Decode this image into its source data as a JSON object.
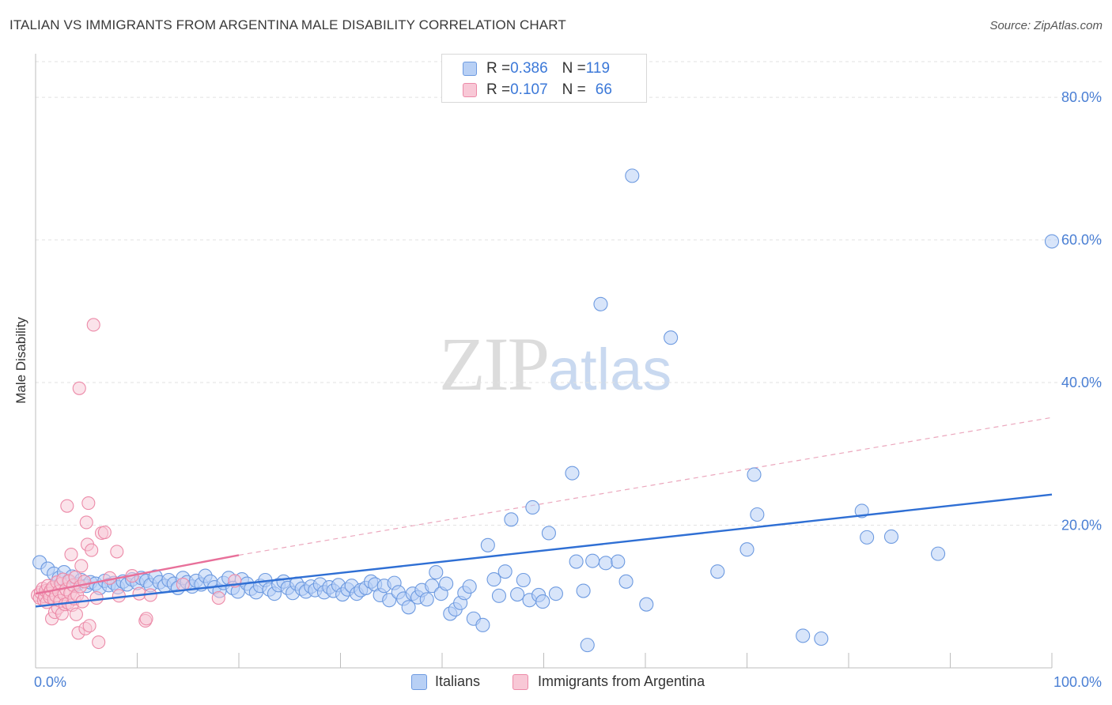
{
  "title": "ITALIAN VS IMMIGRANTS FROM ARGENTINA MALE DISABILITY CORRELATION CHART",
  "source": "Source: ZipAtlas.com",
  "watermark": {
    "zip": "ZIP",
    "atlas": "atlas"
  },
  "legend": {
    "rows": [
      {
        "r_label": "R = ",
        "r_value": "0.386",
        "n_label": "N = ",
        "n_value": "119"
      },
      {
        "r_label": "R = ",
        "r_value": "0.107",
        "n_label": "N = ",
        "n_value": "66"
      }
    ]
  },
  "bottom_legend": {
    "italians": "Italians",
    "argentina": "Immigrants from Argentina"
  },
  "chart_data": {
    "type": "scatter",
    "xlabel": "",
    "ylabel": "Male Disability",
    "xlim": [
      0,
      100
    ],
    "ylim": [
      0,
      85
    ],
    "x_tick_labels": [
      {
        "value": 0,
        "label": "0.0%"
      },
      {
        "value": 100,
        "label": "100.0%"
      }
    ],
    "y_tick_labels": [
      {
        "value": 20,
        "label": "20.0%"
      },
      {
        "value": 40,
        "label": "40.0%"
      },
      {
        "value": 60,
        "label": "60.0%"
      },
      {
        "value": 80,
        "label": "80.0%"
      }
    ],
    "series": [
      {
        "name": "Italians",
        "color": "#6d9ae0",
        "fill": "#b8d0f5",
        "trend": {
          "x0": 0,
          "y0": 8.6,
          "x1": 100,
          "y1": 24.3,
          "style": "solid",
          "color": "#2f6fd4"
        },
        "points": [
          [
            0.4,
            14.8
          ],
          [
            1.2,
            13.9
          ],
          [
            1.8,
            13.2
          ],
          [
            2.3,
            12.6
          ],
          [
            2.8,
            13.4
          ],
          [
            3.2,
            12.1
          ],
          [
            3.6,
            12.8
          ],
          [
            4.1,
            11.7
          ],
          [
            4.5,
            12.3
          ],
          [
            5.0,
            11.5
          ],
          [
            5.4,
            12.0
          ],
          [
            5.9,
            11.8
          ],
          [
            6.3,
            11.2
          ],
          [
            6.8,
            12.2
          ],
          [
            7.2,
            11.6
          ],
          [
            7.7,
            11.9
          ],
          [
            8.1,
            11.3
          ],
          [
            8.6,
            12.1
          ],
          [
            9.0,
            11.7
          ],
          [
            9.5,
            12.4
          ],
          [
            10.0,
            11.9
          ],
          [
            10.4,
            12.6
          ],
          [
            10.9,
            12.2
          ],
          [
            11.3,
            11.6
          ],
          [
            11.8,
            12.8
          ],
          [
            12.2,
            12.0
          ],
          [
            12.7,
            11.5
          ],
          [
            13.1,
            12.3
          ],
          [
            13.6,
            11.8
          ],
          [
            14.0,
            11.2
          ],
          [
            14.5,
            12.6
          ],
          [
            14.9,
            12.0
          ],
          [
            15.4,
            11.4
          ],
          [
            15.8,
            12.2
          ],
          [
            16.3,
            11.7
          ],
          [
            16.7,
            12.9
          ],
          [
            17.2,
            12.1
          ],
          [
            17.6,
            11.3
          ],
          [
            18.1,
            10.8
          ],
          [
            18.5,
            11.9
          ],
          [
            19.0,
            12.6
          ],
          [
            19.4,
            11.2
          ],
          [
            19.9,
            10.7
          ],
          [
            20.3,
            12.4
          ],
          [
            20.8,
            11.8
          ],
          [
            21.2,
            11.1
          ],
          [
            21.7,
            10.6
          ],
          [
            22.1,
            11.5
          ],
          [
            22.6,
            12.3
          ],
          [
            23.0,
            11.0
          ],
          [
            23.5,
            10.4
          ],
          [
            23.9,
            11.6
          ],
          [
            24.4,
            12.1
          ],
          [
            24.8,
            11.2
          ],
          [
            25.3,
            10.5
          ],
          [
            25.7,
            11.8
          ],
          [
            26.2,
            11.1
          ],
          [
            26.6,
            10.7
          ],
          [
            27.1,
            11.4
          ],
          [
            27.5,
            10.9
          ],
          [
            28.0,
            11.7
          ],
          [
            28.4,
            10.6
          ],
          [
            28.9,
            11.3
          ],
          [
            29.3,
            10.8
          ],
          [
            29.8,
            11.6
          ],
          [
            30.2,
            10.3
          ],
          [
            30.7,
            11.0
          ],
          [
            31.1,
            11.5
          ],
          [
            31.6,
            10.4
          ],
          [
            32.0,
            10.9
          ],
          [
            32.5,
            11.2
          ],
          [
            33.0,
            12.1
          ],
          [
            33.4,
            11.7
          ],
          [
            33.9,
            10.2
          ],
          [
            34.3,
            11.5
          ],
          [
            34.8,
            9.5
          ],
          [
            35.3,
            11.9
          ],
          [
            35.7,
            10.6
          ],
          [
            36.2,
            9.7
          ],
          [
            36.7,
            8.5
          ],
          [
            37.1,
            10.4
          ],
          [
            37.6,
            9.9
          ],
          [
            38.0,
            10.9
          ],
          [
            38.5,
            9.6
          ],
          [
            39.0,
            11.5
          ],
          [
            39.4,
            13.4
          ],
          [
            39.9,
            10.4
          ],
          [
            40.4,
            11.8
          ],
          [
            40.8,
            7.6
          ],
          [
            41.3,
            8.2
          ],
          [
            41.8,
            9.1
          ],
          [
            42.2,
            10.5
          ],
          [
            42.7,
            11.4
          ],
          [
            43.1,
            6.9
          ],
          [
            44.0,
            6.0
          ],
          [
            44.5,
            17.2
          ],
          [
            45.1,
            12.4
          ],
          [
            45.6,
            10.1
          ],
          [
            46.2,
            13.5
          ],
          [
            46.8,
            20.8
          ],
          [
            47.4,
            10.3
          ],
          [
            48.0,
            12.3
          ],
          [
            48.6,
            9.5
          ],
          [
            48.9,
            22.5
          ],
          [
            49.5,
            10.2
          ],
          [
            49.9,
            9.3
          ],
          [
            50.5,
            18.9
          ],
          [
            51.2,
            10.4
          ],
          [
            52.8,
            27.3
          ],
          [
            53.2,
            14.9
          ],
          [
            53.9,
            10.8
          ],
          [
            54.3,
            3.2
          ],
          [
            54.8,
            15.0
          ],
          [
            55.6,
            51.0
          ],
          [
            56.1,
            14.7
          ],
          [
            57.3,
            14.9
          ],
          [
            58.1,
            12.1
          ],
          [
            58.7,
            69.0
          ],
          [
            60.1,
            8.9
          ],
          [
            62.5,
            46.3
          ],
          [
            67.1,
            13.5
          ],
          [
            70.0,
            16.6
          ],
          [
            70.7,
            27.1
          ],
          [
            71.0,
            21.5
          ],
          [
            75.5,
            4.5
          ],
          [
            77.3,
            4.1
          ],
          [
            81.3,
            22.0
          ],
          [
            81.8,
            18.3
          ],
          [
            84.2,
            18.4
          ],
          [
            88.8,
            16.0
          ],
          [
            100.0,
            59.8
          ]
        ]
      },
      {
        "name": "Immigrants from Argentina",
        "color": "#ec8aa8",
        "fill": "#f8c8d6",
        "trend": {
          "x0": 0,
          "y0": 10.4,
          "x1": 20,
          "y1": 15.8,
          "style": "solid",
          "color": "#e8709a",
          "ext_x1": 100,
          "ext_y1": 35.1
        },
        "points": [
          [
            0.2,
            10.2
          ],
          [
            0.4,
            9.8
          ],
          [
            0.5,
            10.6
          ],
          [
            0.7,
            11.1
          ],
          [
            0.8,
            9.5
          ],
          [
            0.9,
            10.0
          ],
          [
            1.0,
            10.8
          ],
          [
            1.1,
            9.2
          ],
          [
            1.2,
            11.5
          ],
          [
            1.3,
            10.4
          ],
          [
            1.4,
            9.9
          ],
          [
            1.5,
            10.9
          ],
          [
            1.6,
            6.9
          ],
          [
            1.7,
            11.3
          ],
          [
            1.8,
            9.6
          ],
          [
            1.9,
            7.8
          ],
          [
            2.0,
            10.1
          ],
          [
            2.1,
            12.0
          ],
          [
            2.2,
            8.4
          ],
          [
            2.3,
            10.7
          ],
          [
            2.4,
            9.4
          ],
          [
            2.5,
            11.8
          ],
          [
            2.6,
            7.6
          ],
          [
            2.7,
            12.4
          ],
          [
            2.8,
            10.3
          ],
          [
            2.9,
            8.9
          ],
          [
            3.0,
            11.0
          ],
          [
            3.1,
            22.7
          ],
          [
            3.2,
            9.1
          ],
          [
            3.3,
            12.2
          ],
          [
            3.4,
            10.5
          ],
          [
            3.5,
            15.9
          ],
          [
            3.6,
            8.8
          ],
          [
            3.7,
            11.6
          ],
          [
            3.8,
            9.7
          ],
          [
            3.9,
            12.7
          ],
          [
            4.0,
            7.5
          ],
          [
            4.1,
            10.2
          ],
          [
            4.2,
            4.9
          ],
          [
            4.3,
            39.2
          ],
          [
            4.4,
            11.4
          ],
          [
            4.5,
            14.3
          ],
          [
            4.6,
            9.3
          ],
          [
            4.8,
            12.1
          ],
          [
            4.9,
            5.5
          ],
          [
            5.0,
            20.4
          ],
          [
            5.1,
            17.3
          ],
          [
            5.2,
            23.1
          ],
          [
            5.3,
            5.9
          ],
          [
            5.5,
            16.5
          ],
          [
            5.7,
            48.1
          ],
          [
            6.0,
            9.8
          ],
          [
            6.2,
            3.6
          ],
          [
            6.5,
            18.9
          ],
          [
            6.8,
            19.0
          ],
          [
            7.3,
            12.6
          ],
          [
            8.0,
            16.3
          ],
          [
            8.2,
            10.1
          ],
          [
            9.5,
            12.9
          ],
          [
            10.2,
            10.4
          ],
          [
            10.8,
            6.6
          ],
          [
            10.9,
            6.9
          ],
          [
            11.3,
            10.2
          ],
          [
            14.5,
            11.7
          ],
          [
            18.0,
            9.8
          ],
          [
            19.6,
            12.2
          ]
        ]
      }
    ]
  }
}
